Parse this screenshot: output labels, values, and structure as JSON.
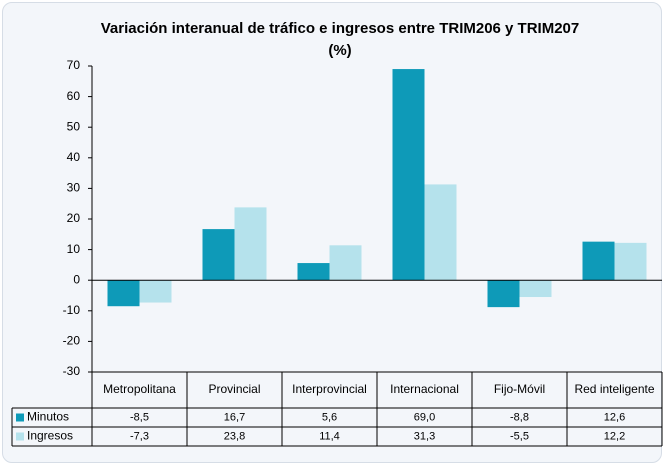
{
  "chart_data": {
    "type": "bar",
    "title": "Variación interanual de tráfico e ingresos entre TRIM206 y TRIM207 (%)",
    "categories": [
      "Metropolitana",
      "Provincial",
      "Interprovincial",
      "Internacional",
      "Fijo-Móvil",
      "Red inteligente"
    ],
    "series": [
      {
        "name": "Minutos",
        "color": "#0e9ab8",
        "values": [
          -8.5,
          16.7,
          5.6,
          69.0,
          -8.8,
          12.6
        ],
        "value_labels": [
          "-8,5",
          "16,7",
          "5,6",
          "69,0",
          "-8,8",
          "12,6"
        ]
      },
      {
        "name": "Ingresos",
        "color": "#b5e2ec",
        "values": [
          -7.3,
          23.8,
          11.4,
          31.3,
          -5.5,
          12.2
        ],
        "value_labels": [
          "-7,3",
          "23,8",
          "11,4",
          "31,3",
          "-5,5",
          "12,2"
        ]
      }
    ],
    "ylim": [
      -30,
      70
    ],
    "yticks": [
      -30,
      -20,
      -10,
      0,
      10,
      20,
      30,
      40,
      50,
      60,
      70
    ],
    "grid": false
  }
}
